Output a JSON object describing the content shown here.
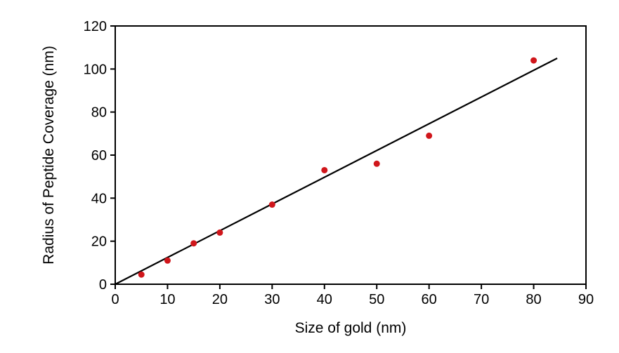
{
  "chart_data": {
    "type": "scatter",
    "title": "",
    "xlabel": "Size of gold (nm)",
    "ylabel": "Radius of Peptide Coverage (nm)",
    "xlim": [
      0,
      90
    ],
    "ylim": [
      0,
      120
    ],
    "xticks": [
      0,
      10,
      20,
      30,
      40,
      50,
      60,
      70,
      80,
      90
    ],
    "yticks": [
      0,
      20,
      40,
      60,
      80,
      100,
      120
    ],
    "grid": false,
    "legend": "none",
    "marker_color": "#d0161b",
    "line_color": "#000000",
    "series": [
      {
        "type": "scatter",
        "x": [
          5,
          10,
          15,
          20,
          30,
          40,
          50,
          60,
          80
        ],
        "y": [
          4.5,
          11,
          19,
          24,
          37,
          53,
          56,
          69,
          104
        ]
      }
    ],
    "fit_line": {
      "x": [
        0,
        84.5
      ],
      "y": [
        0,
        105
      ]
    }
  }
}
